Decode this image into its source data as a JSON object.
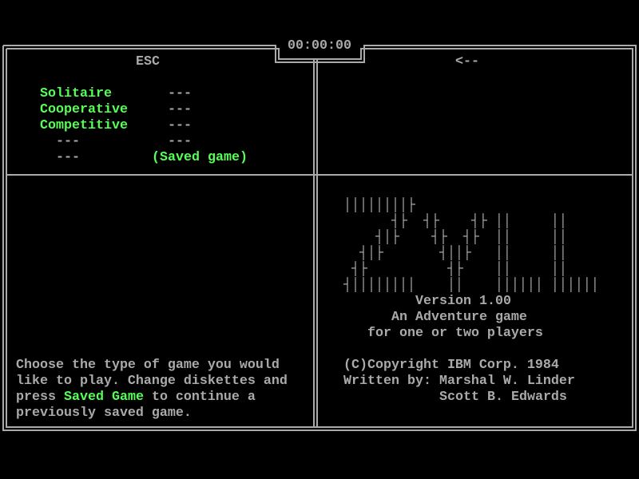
{
  "colors": {
    "text": "#aaaaaa",
    "highlight": "#55ff55",
    "background": "#000000",
    "border": "#aaaaaa"
  },
  "header": {
    "timer": "00:00:00"
  },
  "left_panel": {
    "back_key": "ESC",
    "menu": [
      {
        "label": "Solitaire",
        "value": "---"
      },
      {
        "label": "Cooperative",
        "value": "---"
      },
      {
        "label": "Competitive",
        "value": "---"
      },
      {
        "label": "---",
        "value": "---"
      },
      {
        "label": "---",
        "value": "(Saved game)"
      }
    ],
    "help": {
      "line1": "Choose the type of game you would",
      "line2": "like to play. Change diskettes and",
      "line3_pre": "press ",
      "line3_key": "Saved Game",
      "line3_post": " to continue a",
      "line4": "previously saved game."
    }
  },
  "right_panel": {
    "arrow_key": "<--",
    "logo_text": "ZML",
    "logo_art": [
      "││││││││├",
      "      ┤├  ┤├    ┤├ ││     ││",
      "    ┤│├    ┤├  ┤├  ││     ││",
      "  ┤│├       ┤││├   ││     ││",
      " ┤├          ┤├    ││     ││",
      "┤││││││││    ││    ││││││ ││││││"
    ],
    "version": "Version 1.00",
    "tagline1": "An Adventure game",
    "tagline2": "for one or two players",
    "copyright": "(C)Copyright IBM Corp. 1984",
    "written_by": "Written by: Marshal W. Linder",
    "coauthor": "Scott B. Edwards"
  }
}
